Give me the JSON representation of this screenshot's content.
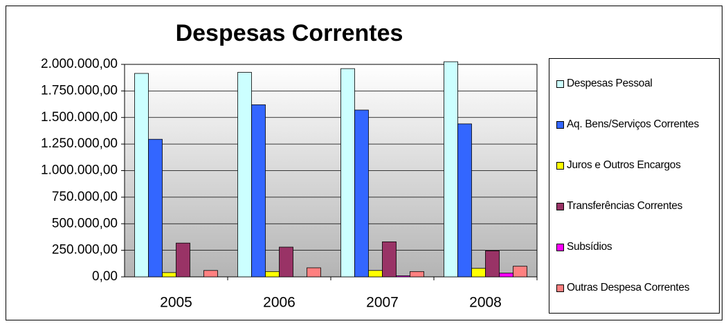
{
  "chart_data": {
    "type": "bar",
    "title": "Despesas Correntes",
    "categories": [
      "2005",
      "2006",
      "2007",
      "2008"
    ],
    "series": [
      {
        "name": "Despesas Pessoal",
        "color": "#ccffff",
        "values": [
          1915000,
          1925000,
          1960000,
          2025000
        ]
      },
      {
        "name": "Aq. Bens/Serviços Correntes",
        "color": "#3366ff",
        "values": [
          1295000,
          1620000,
          1570000,
          1440000
        ]
      },
      {
        "name": "Juros e Outros Encargos",
        "color": "#ffff00",
        "values": [
          40000,
          50000,
          60000,
          80000
        ]
      },
      {
        "name": "Transferências Correntes",
        "color": "#993366",
        "values": [
          318000,
          280000,
          330000,
          245000
        ]
      },
      {
        "name": "Subsídios",
        "color": "#ff00ff",
        "values": [
          0,
          0,
          10000,
          35000
        ]
      },
      {
        "name": "Outras Despesa Correntes",
        "color": "#ff8080",
        "values": [
          60000,
          85000,
          50000,
          100000
        ]
      }
    ],
    "ylim": [
      0,
      2000000
    ],
    "yticks": [
      {
        "value": 0,
        "label": "0,00"
      },
      {
        "value": 250000,
        "label": "250.000,00"
      },
      {
        "value": 500000,
        "label": "500.000,00"
      },
      {
        "value": 750000,
        "label": "750.000,00"
      },
      {
        "value": 1000000,
        "label": "1.000.000,00"
      },
      {
        "value": 1250000,
        "label": "1.250.000,00"
      },
      {
        "value": 1500000,
        "label": "1.500.000,00"
      },
      {
        "value": 1750000,
        "label": "1.750.000,00"
      },
      {
        "value": 2000000,
        "label": "2.000.000,00"
      }
    ],
    "grid": true,
    "legend": "right"
  }
}
